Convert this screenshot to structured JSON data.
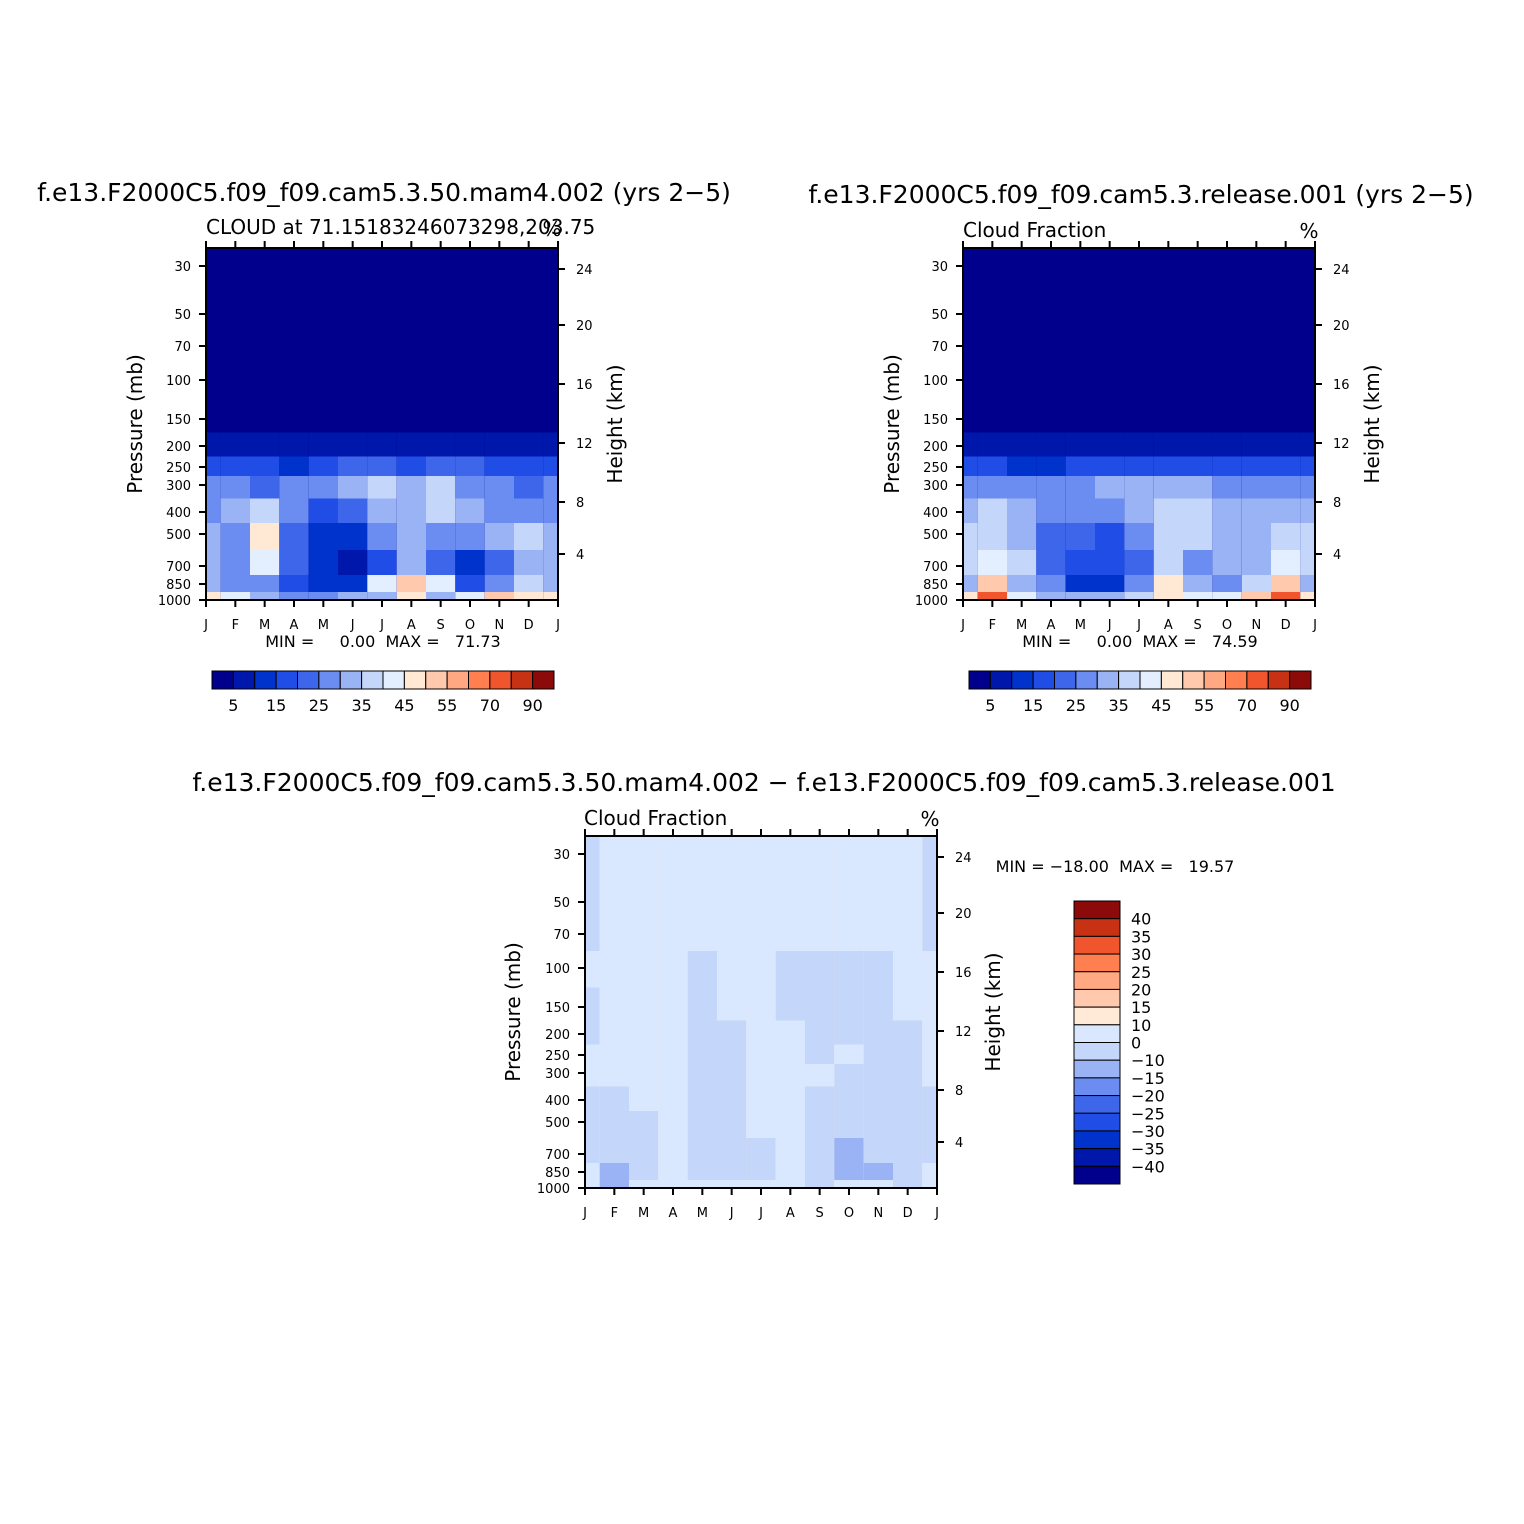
{
  "panels": [
    {
      "id": "p1",
      "title": "f.e13.F2000C5.f09_f09.cam5.3.50.mam4.002 (yrs 2−5)",
      "left_label": "CLOUD at 71.15183246073298,203.75",
      "right_label": "%",
      "minmax": "MIN =     0.00  MAX =   71.73"
    },
    {
      "id": "p2",
      "title": "f.e13.F2000C5.f09_f09.cam5.3.release.001 (yrs 2−5)",
      "left_label": "Cloud Fraction",
      "right_label": "%",
      "minmax": "MIN =     0.00  MAX =   74.59"
    },
    {
      "id": "p3",
      "title": "f.e13.F2000C5.f09_f09.cam5.3.50.mam4.002 − f.e13.F2000C5.f09_f09.cam5.3.release.001",
      "left_label": "Cloud Fraction",
      "right_label": "%",
      "minmax": "MIN = −18.00  MAX =   19.57"
    }
  ],
  "chart_data": [
    {
      "type": "heatmap",
      "title": "f.e13.F2000C5.f09_f09.cam5.3.50.mam4.002 (yrs 2−5)",
      "subtitle": "CLOUD at 71.15183246073298,203.75",
      "units": "%",
      "xlabel": "",
      "ylabel": "Pressure (mb)",
      "y2label": "Height (km)",
      "x_ticks": [
        "J",
        "F",
        "M",
        "A",
        "M",
        "J",
        "J",
        "A",
        "S",
        "O",
        "N",
        "D",
        "J"
      ],
      "y_ticks": [
        30,
        50,
        70,
        100,
        150,
        200,
        250,
        300,
        400,
        500,
        700,
        850,
        1000
      ],
      "y2_ticks": [
        24,
        20,
        16,
        12,
        8,
        4
      ],
      "y_scale": "log",
      "min": 0.0,
      "max": 71.73,
      "colorbar": {
        "levels": [
          5,
          10,
          15,
          20,
          25,
          30,
          35,
          40,
          45,
          50,
          55,
          60,
          70,
          80,
          90
        ],
        "labels": [
          "5",
          "15",
          "25",
          "35",
          "45",
          "55",
          "70",
          "90"
        ],
        "colors": [
          "#00008C",
          "#0017AB",
          "#0033CC",
          "#1F4DE6",
          "#3D66EB",
          "#6B8CF0",
          "#9AB3F5",
          "#C4D6FA",
          "#E3EEFF",
          "#FFE8D4",
          "#FFC9AE",
          "#FFA882",
          "#FF7F50",
          "#F0552E",
          "#C83214",
          "#8C0A0A"
        ]
      },
      "values": {
        "pressure_levels": [
          1000,
          850,
          700,
          500,
          400,
          300,
          250,
          200,
          150,
          100
        ],
        "months": [
          "J",
          "F",
          "M",
          "A",
          "M",
          "J",
          "J",
          "A",
          "S",
          "O",
          "N",
          "D",
          "J"
        ],
        "rows": [
          [
            45,
            40,
            30,
            25,
            25,
            30,
            30,
            45,
            30,
            40,
            50,
            45,
            45
          ],
          [
            30,
            28,
            25,
            15,
            10,
            10,
            40,
            50,
            40,
            15,
            28,
            35,
            30
          ],
          [
            30,
            28,
            40,
            20,
            12,
            8,
            15,
            30,
            22,
            10,
            20,
            32,
            30
          ],
          [
            30,
            25,
            45,
            20,
            12,
            10,
            25,
            30,
            28,
            25,
            30,
            35,
            30
          ],
          [
            28,
            30,
            35,
            25,
            18,
            22,
            30,
            32,
            35,
            30,
            28,
            28,
            28
          ],
          [
            25,
            25,
            22,
            25,
            25,
            30,
            35,
            30,
            35,
            25,
            25,
            22,
            25
          ],
          [
            15,
            18,
            15,
            12,
            15,
            20,
            20,
            18,
            20,
            20,
            15,
            15,
            15
          ],
          [
            5,
            8,
            8,
            6,
            8,
            8,
            8,
            6,
            8,
            8,
            5,
            5,
            5
          ],
          [
            0,
            0,
            0,
            0,
            0,
            0,
            0,
            0,
            0,
            0,
            0,
            0,
            0
          ],
          [
            0,
            0,
            0,
            0,
            0,
            0,
            0,
            0,
            0,
            0,
            0,
            0,
            0
          ]
        ]
      }
    },
    {
      "type": "heatmap",
      "title": "f.e13.F2000C5.f09_f09.cam5.3.release.001 (yrs 2−5)",
      "subtitle": "Cloud Fraction",
      "units": "%",
      "xlabel": "",
      "ylabel": "Pressure (mb)",
      "y2label": "Height (km)",
      "x_ticks": [
        "J",
        "F",
        "M",
        "A",
        "M",
        "J",
        "J",
        "A",
        "S",
        "O",
        "N",
        "D",
        "J"
      ],
      "y_ticks": [
        30,
        50,
        70,
        100,
        150,
        200,
        250,
        300,
        400,
        500,
        700,
        850,
        1000
      ],
      "y2_ticks": [
        24,
        20,
        16,
        12,
        8,
        4
      ],
      "y_scale": "log",
      "min": 0.0,
      "max": 74.59,
      "colorbar": {
        "levels": [
          5,
          10,
          15,
          20,
          25,
          30,
          35,
          40,
          45,
          50,
          55,
          60,
          70,
          80,
          90
        ],
        "labels": [
          "5",
          "15",
          "25",
          "35",
          "45",
          "55",
          "70",
          "90"
        ],
        "colors": [
          "#00008C",
          "#0017AB",
          "#0033CC",
          "#1F4DE6",
          "#3D66EB",
          "#6B8CF0",
          "#9AB3F5",
          "#C4D6FA",
          "#E3EEFF",
          "#FFE8D4",
          "#FFC9AE",
          "#FFA882",
          "#FF7F50",
          "#F0552E",
          "#C83214",
          "#8C0A0A"
        ]
      },
      "values": {
        "pressure_levels": [
          1000,
          850,
          700,
          500,
          400,
          300,
          250,
          200,
          150,
          100
        ],
        "months": [
          "J",
          "F",
          "M",
          "A",
          "M",
          "J",
          "J",
          "A",
          "S",
          "O",
          "N",
          "D",
          "J"
        ],
        "rows": [
          [
            45,
            70,
            40,
            30,
            30,
            30,
            35,
            45,
            40,
            40,
            50,
            70,
            45
          ],
          [
            30,
            50,
            30,
            25,
            12,
            12,
            25,
            45,
            30,
            25,
            35,
            50,
            30
          ],
          [
            35,
            40,
            35,
            20,
            15,
            15,
            22,
            35,
            28,
            30,
            32,
            40,
            35
          ],
          [
            35,
            35,
            30,
            22,
            20,
            18,
            25,
            35,
            35,
            30,
            30,
            38,
            35
          ],
          [
            30,
            35,
            30,
            28,
            25,
            25,
            30,
            35,
            35,
            32,
            30,
            30,
            30
          ],
          [
            25,
            25,
            25,
            28,
            28,
            30,
            32,
            32,
            32,
            28,
            25,
            25,
            25
          ],
          [
            15,
            15,
            12,
            10,
            15,
            18,
            18,
            18,
            18,
            15,
            15,
            15,
            15
          ],
          [
            5,
            5,
            5,
            5,
            8,
            8,
            8,
            8,
            8,
            6,
            5,
            5,
            5
          ],
          [
            0,
            0,
            0,
            0,
            0,
            0,
            0,
            0,
            0,
            0,
            0,
            0,
            0
          ],
          [
            0,
            0,
            0,
            0,
            0,
            0,
            0,
            0,
            0,
            0,
            0,
            0,
            0
          ]
        ]
      }
    },
    {
      "type": "heatmap",
      "title": "f.e13.F2000C5.f09_f09.cam5.3.50.mam4.002 − f.e13.F2000C5.f09_f09.cam5.3.release.001",
      "subtitle": "Cloud Fraction",
      "units": "%",
      "xlabel": "",
      "ylabel": "Pressure (mb)",
      "y2label": "Height (km)",
      "x_ticks": [
        "J",
        "F",
        "M",
        "A",
        "M",
        "J",
        "J",
        "A",
        "S",
        "O",
        "N",
        "D",
        "J"
      ],
      "y_ticks": [
        30,
        50,
        70,
        100,
        150,
        200,
        250,
        300,
        400,
        500,
        700,
        850,
        1000
      ],
      "y2_ticks": [
        24,
        20,
        16,
        12,
        8,
        4
      ],
      "y_scale": "log",
      "min": -18.0,
      "max": 19.57,
      "colorbar": {
        "levels": [
          -40,
          -35,
          -30,
          -25,
          -20,
          -15,
          -10,
          0,
          10,
          15,
          20,
          25,
          30,
          35,
          40
        ],
        "labels": [
          "40",
          "35",
          "30",
          "25",
          "20",
          "15",
          "10",
          "0",
          "−10",
          "−15",
          "−20",
          "−25",
          "−30",
          "−35",
          "−40"
        ],
        "colors": [
          "#00008C",
          "#0017AB",
          "#0033CC",
          "#1F4DE6",
          "#3D66EB",
          "#6B8CF0",
          "#9AB3F5",
          "#C4D6FA",
          "#D9E8FF",
          "#FFEAD7",
          "#FFC9AE",
          "#FFA882",
          "#FF7F50",
          "#F0552E",
          "#C83214",
          "#8C0A0A"
        ]
      },
      "values": {
        "pressure_levels": [
          1000,
          850,
          700,
          500,
          400,
          300,
          250,
          200,
          150,
          100,
          70,
          50,
          30
        ],
        "months": [
          "J",
          "F",
          "M",
          "A",
          "M",
          "J",
          "J",
          "A",
          "S",
          "O",
          "N",
          "D",
          "J"
        ],
        "rows": [
          [
            2,
            -14,
            2,
            2,
            2,
            2,
            2,
            2,
            -3,
            2,
            2,
            -3,
            2
          ],
          [
            2,
            -12,
            -3,
            2,
            -3,
            -3,
            -3,
            2,
            -3,
            -12,
            -12,
            -3,
            2
          ],
          [
            -3,
            -8,
            -3,
            2,
            -3,
            -3,
            -3,
            2,
            -3,
            -12,
            -3,
            -3,
            -3
          ],
          [
            -3,
            -6,
            -3,
            2,
            -3,
            -3,
            2,
            2,
            -3,
            -3,
            -3,
            -3,
            -3
          ],
          [
            -3,
            -3,
            2,
            2,
            -3,
            -3,
            2,
            2,
            -3,
            -3,
            -3,
            -3,
            -3
          ],
          [
            2,
            2,
            2,
            2,
            -3,
            -3,
            2,
            2,
            2,
            -3,
            -3,
            -3,
            2
          ],
          [
            2,
            2,
            2,
            2,
            -3,
            -3,
            2,
            2,
            -3,
            2,
            -3,
            -3,
            2
          ],
          [
            -3,
            2,
            2,
            2,
            -3,
            -3,
            2,
            2,
            -3,
            -3,
            -3,
            -3,
            2
          ],
          [
            -3,
            2,
            2,
            2,
            -3,
            2,
            2,
            -3,
            -3,
            -3,
            -3,
            2,
            2
          ],
          [
            2,
            2,
            2,
            2,
            -3,
            2,
            2,
            -3,
            -3,
            -3,
            -3,
            2,
            2
          ],
          [
            -3,
            2,
            2,
            2,
            2,
            2,
            2,
            2,
            2,
            2,
            2,
            2,
            -3
          ],
          [
            -3,
            2,
            2,
            2,
            2,
            2,
            2,
            2,
            2,
            2,
            2,
            2,
            -3
          ],
          [
            -3,
            2,
            2,
            2,
            2,
            2,
            2,
            2,
            2,
            2,
            2,
            2,
            -3
          ]
        ]
      }
    }
  ]
}
